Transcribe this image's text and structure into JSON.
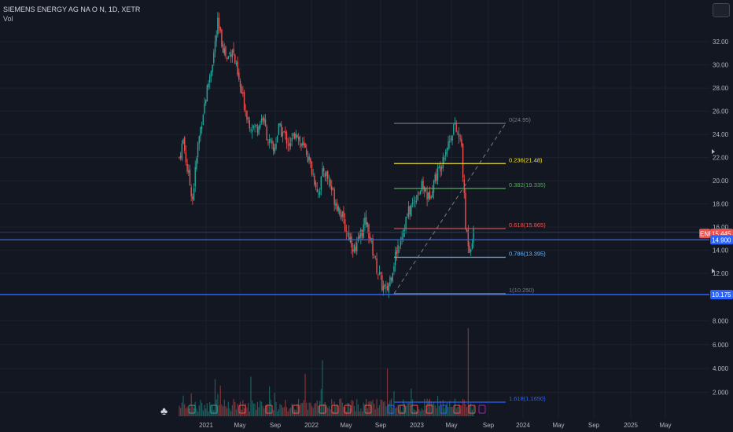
{
  "header": {
    "title": "SIEMENS ENERGY AG NA O N, 1D, XETR",
    "volume_label": "Vol"
  },
  "symbol_badge": "ENR",
  "price_tags": {
    "last": "15.445",
    "level_1": "14.900",
    "level_2": "10.175"
  },
  "colors": {
    "background": "#131722",
    "up": "#26a69a",
    "down": "#ef5350",
    "blue_line": "#2962ff",
    "fib_0": "#787b86",
    "fib_236": "#f0e12b",
    "fib_382": "#4caf50",
    "fib_618": "#ef5350",
    "fib_786": "#64b5f6",
    "fib_1": "#787b86",
    "fib_1618": "#2962ff"
  },
  "chart_data": {
    "type": "candlestick",
    "title": "SIEMENS ENERGY AG NA O N, 1D, XETR",
    "price_axis": {
      "ticks": [
        "32.00",
        "30.00",
        "28.00",
        "26.00",
        "24.00",
        "22.00",
        "20.00",
        "18.00",
        "16.00",
        "14.00",
        "12.00"
      ],
      "range": [
        9.8,
        34.2
      ]
    },
    "volume_axis": {
      "ticks": [
        "8.000",
        "6.000",
        "4.000",
        "2.000"
      ]
    },
    "time_axis": {
      "ticks": [
        "2021",
        "May",
        "Sep",
        "2022",
        "May",
        "Sep",
        "2023",
        "May",
        "Sep",
        "2024",
        "May",
        "Sep",
        "2025",
        "May"
      ]
    },
    "price_path": [
      {
        "t": 0,
        "p": 22.0
      },
      {
        "t": 3,
        "p": 23.5
      },
      {
        "t": 6,
        "p": 21.0
      },
      {
        "t": 10,
        "p": 18.5
      },
      {
        "t": 14,
        "p": 23.0
      },
      {
        "t": 18,
        "p": 26.0
      },
      {
        "t": 22,
        "p": 28.5
      },
      {
        "t": 26,
        "p": 31.0
      },
      {
        "t": 29,
        "p": 33.5
      },
      {
        "t": 32,
        "p": 32.0
      },
      {
        "t": 36,
        "p": 30.5
      },
      {
        "t": 40,
        "p": 31.5
      },
      {
        "t": 44,
        "p": 29.0
      },
      {
        "t": 48,
        "p": 27.0
      },
      {
        "t": 53,
        "p": 25.0
      },
      {
        "t": 58,
        "p": 24.5
      },
      {
        "t": 63,
        "p": 25.5
      },
      {
        "t": 67,
        "p": 23.5
      },
      {
        "t": 71,
        "p": 22.5
      },
      {
        "t": 75,
        "p": 24.5
      },
      {
        "t": 79,
        "p": 24.0
      },
      {
        "t": 84,
        "p": 23.0
      },
      {
        "t": 88,
        "p": 24.5
      },
      {
        "t": 92,
        "p": 23.0
      },
      {
        "t": 96,
        "p": 22.5
      },
      {
        "t": 101,
        "p": 20.5
      },
      {
        "t": 105,
        "p": 19.0
      },
      {
        "t": 109,
        "p": 21.0
      },
      {
        "t": 113,
        "p": 20.0
      },
      {
        "t": 117,
        "p": 18.5
      },
      {
        "t": 121,
        "p": 17.5
      },
      {
        "t": 125,
        "p": 16.0
      },
      {
        "t": 129,
        "p": 15.0
      },
      {
        "t": 133,
        "p": 13.8
      },
      {
        "t": 137,
        "p": 15.5
      },
      {
        "t": 141,
        "p": 16.5
      },
      {
        "t": 145,
        "p": 14.5
      },
      {
        "t": 149,
        "p": 12.5
      },
      {
        "t": 153,
        "p": 11.0
      },
      {
        "t": 156,
        "p": 10.3
      },
      {
        "t": 160,
        "p": 12.0
      },
      {
        "t": 164,
        "p": 14.0
      },
      {
        "t": 168,
        "p": 15.5
      },
      {
        "t": 172,
        "p": 17.0
      },
      {
        "t": 176,
        "p": 18.0
      },
      {
        "t": 180,
        "p": 19.0
      },
      {
        "t": 184,
        "p": 19.5
      },
      {
        "t": 188,
        "p": 18.5
      },
      {
        "t": 192,
        "p": 20.0
      },
      {
        "t": 196,
        "p": 21.0
      },
      {
        "t": 200,
        "p": 22.5
      },
      {
        "t": 204,
        "p": 23.5
      },
      {
        "t": 207,
        "p": 24.8
      },
      {
        "t": 210,
        "p": 24.0
      },
      {
        "t": 213,
        "p": 23.0
      },
      {
        "t": 216,
        "p": 16.0
      },
      {
        "t": 219,
        "p": 14.2
      },
      {
        "t": 222,
        "p": 15.4
      }
    ],
    "horizontal_levels": [
      14.9,
      10.175
    ],
    "fibonacci": [
      {
        "label": "0(24.95)",
        "value": 24.95,
        "color_key": "fib_0"
      },
      {
        "label": "0.236(21.48)",
        "value": 21.48,
        "color_key": "fib_236"
      },
      {
        "label": "0.382(19.335)",
        "value": 19.335,
        "color_key": "fib_382"
      },
      {
        "label": "0.618(15.865)",
        "value": 15.865,
        "color_key": "fib_618"
      },
      {
        "label": "0.786(13.395)",
        "value": 13.395,
        "color_key": "fib_786"
      },
      {
        "label": "1(10.250)",
        "value": 10.25,
        "color_key": "fib_1"
      },
      {
        "label": "1.618(1.1650)",
        "value": 1.165,
        "color_key": "fib_1618"
      }
    ]
  }
}
